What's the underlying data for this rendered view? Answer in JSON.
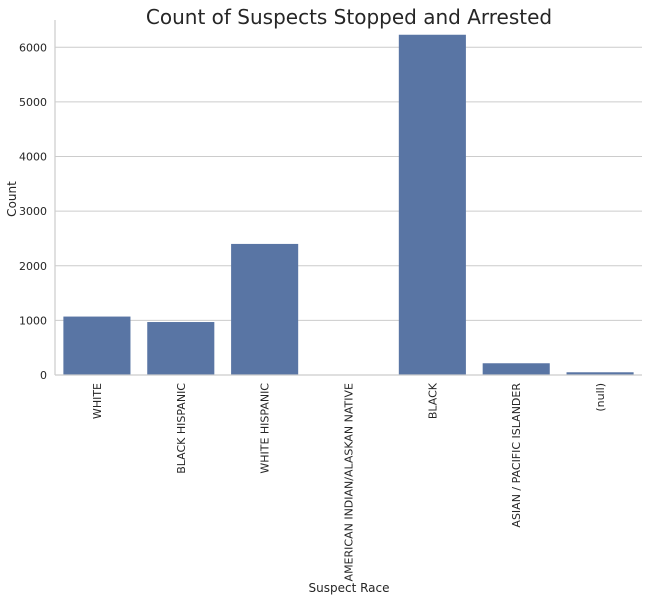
{
  "chart_data": {
    "type": "bar",
    "title": "Count of Suspects Stopped and Arrested",
    "xlabel": "Suspect Race",
    "ylabel": "Count",
    "categories": [
      "WHITE",
      "BLACK HISPANIC",
      "WHITE HISPANIC",
      "AMERICAN INDIAN/ALASKAN NATIVE",
      "BLACK",
      "ASIAN / PACIFIC ISLANDER",
      "(null)"
    ],
    "values": [
      1070,
      970,
      2400,
      8,
      6230,
      215,
      50
    ],
    "ylim": [
      0,
      6500
    ],
    "yticks": [
      0,
      1000,
      2000,
      3000,
      4000,
      5000,
      6000
    ],
    "grid": "horizontal",
    "bar_color": "#5975a4"
  }
}
